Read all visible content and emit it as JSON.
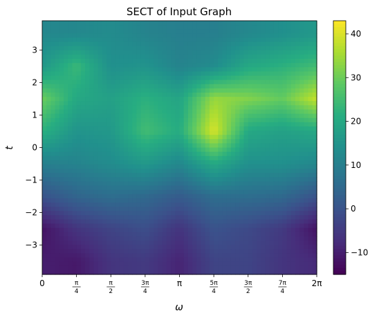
{
  "chart_data": {
    "type": "heatmap",
    "title": "SECT of Input Graph",
    "xlabel": "ω",
    "ylabel": "t",
    "x_range": [
      0,
      6.2832
    ],
    "y_range": [
      -3.9,
      3.9
    ],
    "x_ticks": [
      {
        "value": 0,
        "label": "0"
      },
      {
        "value": 0.7854,
        "num": "π",
        "den": "4"
      },
      {
        "value": 1.5708,
        "num": "π",
        "den": "2"
      },
      {
        "value": 2.3562,
        "num": "3π",
        "den": "4"
      },
      {
        "value": 3.1416,
        "label": "π"
      },
      {
        "value": 3.927,
        "num": "5π",
        "den": "4"
      },
      {
        "value": 4.7124,
        "num": "3π",
        "den": "2"
      },
      {
        "value": 5.4978,
        "num": "7π",
        "den": "4"
      },
      {
        "value": 6.2832,
        "label": "2π"
      }
    ],
    "y_ticks": [
      {
        "value": 3,
        "label": "3"
      },
      {
        "value": 2,
        "label": "2"
      },
      {
        "value": 1,
        "label": "1"
      },
      {
        "value": 0,
        "label": "0"
      },
      {
        "value": -1,
        "label": "−1"
      },
      {
        "value": -2,
        "label": "−2"
      },
      {
        "value": -3,
        "label": "−3"
      }
    ],
    "colorbar": {
      "range": [
        -15,
        43
      ],
      "ticks": [
        {
          "value": 40,
          "label": "40"
        },
        {
          "value": 30,
          "label": "30"
        },
        {
          "value": 20,
          "label": "20"
        },
        {
          "value": 10,
          "label": "10"
        },
        {
          "value": 0,
          "label": "0"
        },
        {
          "value": -10,
          "label": "−10"
        }
      ],
      "colormap": "viridis"
    },
    "value_rows_t": [
      3.5,
      2.5,
      1.5,
      0.5,
      -0.5,
      -1.5,
      -2.5,
      -3.5
    ],
    "value_cols_omega": [
      0,
      0.785,
      1.571,
      2.356,
      3.142,
      3.927,
      4.712,
      5.498,
      6.283
    ],
    "values": [
      [
        12,
        12,
        13,
        11,
        10,
        10,
        12,
        14,
        16
      ],
      [
        16,
        24,
        14,
        15,
        11,
        13,
        20,
        22,
        25
      ],
      [
        30,
        20,
        18,
        22,
        19,
        34,
        32,
        29,
        38
      ],
      [
        22,
        15,
        16,
        25,
        21,
        40,
        20,
        18,
        20
      ],
      [
        10,
        11,
        13,
        16,
        12,
        20,
        14,
        14,
        12
      ],
      [
        0,
        4,
        6,
        5,
        2,
        6,
        6,
        5,
        0
      ],
      [
        -12,
        -6,
        -3,
        -1,
        -6,
        0,
        -2,
        -5,
        -12
      ],
      [
        -10,
        -11,
        -6,
        -5,
        -9,
        -3,
        -3,
        -6,
        -8
      ]
    ]
  }
}
